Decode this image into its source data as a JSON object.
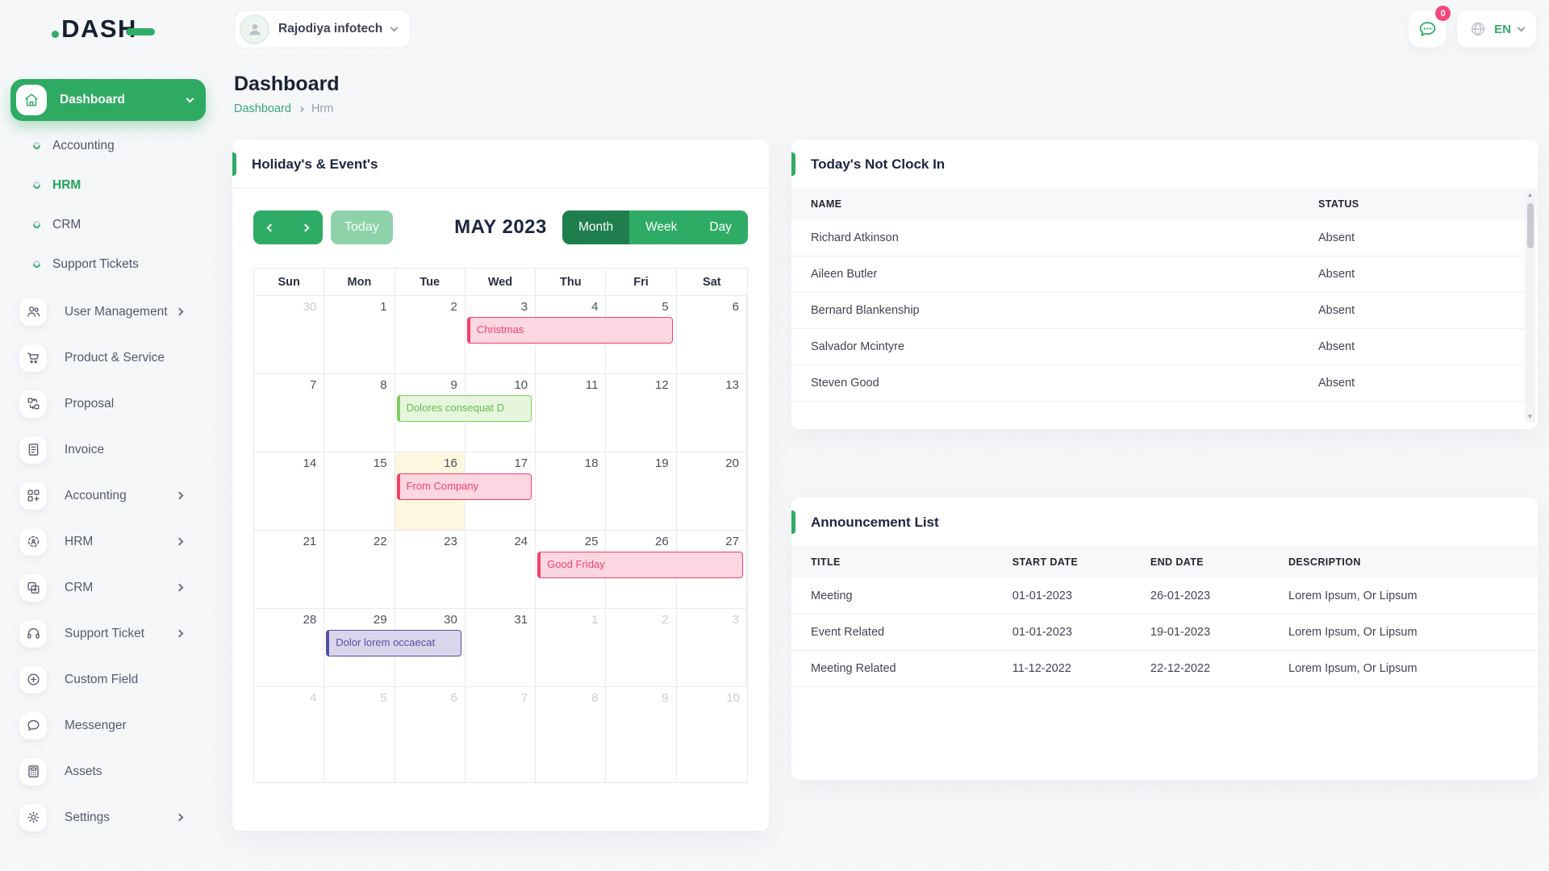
{
  "topbar": {
    "logo_text": "DASH",
    "company": "Rajodiya infotech",
    "notification_count": "0",
    "language": "EN"
  },
  "icons": {
    "scroll_up": "▲",
    "scroll_down": "▼"
  },
  "sidebar": {
    "dashboard_label": "Dashboard",
    "dashboard_children": [
      {
        "name": "accounting",
        "label": "Accounting"
      },
      {
        "name": "hrm",
        "label": "HRM",
        "active": true
      },
      {
        "name": "crm",
        "label": "CRM"
      },
      {
        "name": "support-tickets",
        "label": "Support Tickets"
      }
    ],
    "items": [
      {
        "name": "user-management",
        "label": "User Management",
        "icon": "users-icon",
        "chevron": true
      },
      {
        "name": "product-service",
        "label": "Product & Service",
        "icon": "cart-icon"
      },
      {
        "name": "proposal",
        "label": "Proposal",
        "icon": "proposal-icon"
      },
      {
        "name": "invoice",
        "label": "Invoice",
        "icon": "invoice-icon"
      },
      {
        "name": "accounting",
        "label": "Accounting",
        "icon": "accounting-icon",
        "chevron": true
      },
      {
        "name": "hrm",
        "label": "HRM",
        "icon": "hrm-icon",
        "chevron": true
      },
      {
        "name": "crm",
        "label": "CRM",
        "icon": "crm-icon",
        "chevron": true
      },
      {
        "name": "support-ticket",
        "label": "Support Ticket",
        "icon": "headset-icon",
        "chevron": true
      },
      {
        "name": "custom-field",
        "label": "Custom Field",
        "icon": "plus-circle-icon"
      },
      {
        "name": "messenger",
        "label": "Messenger",
        "icon": "chat-icon"
      },
      {
        "name": "assets",
        "label": "Assets",
        "icon": "calculator-icon"
      },
      {
        "name": "settings",
        "label": "Settings",
        "icon": "gear-icon",
        "chevron": true
      }
    ]
  },
  "page": {
    "title": "Dashboard",
    "breadcrumb_root": "Dashboard",
    "breadcrumb_current": "Hrm"
  },
  "clockin_card": {
    "title": "Today's Not Clock In",
    "columns": [
      "NAME",
      "STATUS"
    ],
    "rows": [
      [
        "Richard Atkinson",
        "Absent"
      ],
      [
        "Aileen Butler",
        "Absent"
      ],
      [
        "Bernard Blankenship",
        "Absent"
      ],
      [
        "Salvador Mcintyre",
        "Absent"
      ],
      [
        "Steven Good",
        "Absent"
      ]
    ]
  },
  "announcement_card": {
    "title": "Announcement List",
    "columns": [
      "TITLE",
      "START DATE",
      "END DATE",
      "DESCRIPTION"
    ],
    "rows": [
      [
        "Meeting",
        "01-01-2023",
        "26-01-2023",
        "Lorem Ipsum, Or Lipsum"
      ],
      [
        "Event Related",
        "01-01-2023",
        "19-01-2023",
        "Lorem Ipsum, Or Lipsum"
      ],
      [
        "Meeting Related",
        "11-12-2022",
        "22-12-2022",
        "Lorem Ipsum, Or Lipsum"
      ]
    ]
  },
  "calendar_card": {
    "title": "Holiday's & Event's",
    "toolbar": {
      "today_label": "Today",
      "month_title": "MAY 2023",
      "views": [
        {
          "label": "Month",
          "active": true
        },
        {
          "label": "Week"
        },
        {
          "label": "Day"
        }
      ]
    },
    "weekdays": [
      "Sun",
      "Mon",
      "Tue",
      "Wed",
      "Thu",
      "Fri",
      "Sat"
    ],
    "weeks": [
      [
        {
          "d": 30,
          "muted": true
        },
        {
          "d": 1
        },
        {
          "d": 2
        },
        {
          "d": 3
        },
        {
          "d": 4
        },
        {
          "d": 5
        },
        {
          "d": 6
        }
      ],
      [
        {
          "d": 7
        },
        {
          "d": 8
        },
        {
          "d": 9
        },
        {
          "d": 10
        },
        {
          "d": 11
        },
        {
          "d": 12
        },
        {
          "d": 13
        }
      ],
      [
        {
          "d": 14
        },
        {
          "d": 15
        },
        {
          "d": 16
        },
        {
          "d": 17
        },
        {
          "d": 18
        },
        {
          "d": 19
        },
        {
          "d": 20
        }
      ],
      [
        {
          "d": 21
        },
        {
          "d": 22
        },
        {
          "d": 23
        },
        {
          "d": 24
        },
        {
          "d": 25
        },
        {
          "d": 26
        },
        {
          "d": 27
        }
      ],
      [
        {
          "d": 28
        },
        {
          "d": 29
        },
        {
          "d": 30
        },
        {
          "d": 31
        },
        {
          "d": 1,
          "muted": true
        },
        {
          "d": 2,
          "muted": true
        },
        {
          "d": 3,
          "muted": true
        }
      ],
      [
        {
          "d": 4,
          "muted": true
        },
        {
          "d": 5,
          "muted": true
        },
        {
          "d": 6,
          "muted": true
        },
        {
          "d": 7,
          "muted": true
        },
        {
          "d": 8,
          "muted": true
        },
        {
          "d": 9,
          "muted": true
        },
        {
          "d": 10,
          "muted": true
        }
      ]
    ],
    "today": {
      "week": 2,
      "col": 2
    },
    "events": [
      {
        "label": "Christmas",
        "week": 0,
        "start": 3,
        "span": 3,
        "style": "pink"
      },
      {
        "label": "Dolores consequat D",
        "week": 1,
        "start": 2,
        "span": 2,
        "style": "green"
      },
      {
        "label": "From Company",
        "week": 2,
        "start": 2,
        "span": 2,
        "style": "pink"
      },
      {
        "label": "Good Friday",
        "week": 3,
        "start": 4,
        "span": 3,
        "style": "pink"
      },
      {
        "label": "Dolor lorem occaecat",
        "week": 4,
        "start": 1,
        "span": 2,
        "style": "purple"
      }
    ],
    "event_styles": {
      "pink": {
        "bg": "#fcd7e1",
        "border": "#f1416c",
        "text": "#f1416c"
      },
      "green": {
        "bg": "#e6f6dd",
        "border": "#7ccf5f",
        "text": "#67bd4a"
      },
      "purple": {
        "bg": "#d9d6ec",
        "border": "#564fa1",
        "text": "#564fa1"
      }
    }
  },
  "colors": {
    "primary_green": "#2eac66",
    "sidebar_active_bg": "#2eaa63",
    "active_view_green": "#1f7e4d",
    "today_button_green": "#8ed2a9",
    "link_green": "#3aa878",
    "badge_pink": "#f4477d",
    "today_cell_bg": "#fdf7e0",
    "logo_navy": "#16202f"
  }
}
